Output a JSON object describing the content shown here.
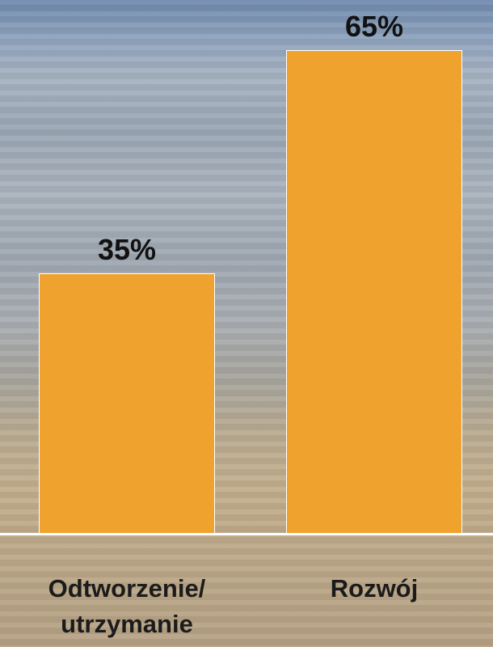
{
  "chart_data": {
    "type": "bar",
    "categories": [
      "Odtworzenie/\nutrzymanie",
      "Rozwój"
    ],
    "values": [
      35,
      65
    ],
    "value_labels": [
      "35%",
      "65%"
    ],
    "color": "#f0a22e"
  }
}
